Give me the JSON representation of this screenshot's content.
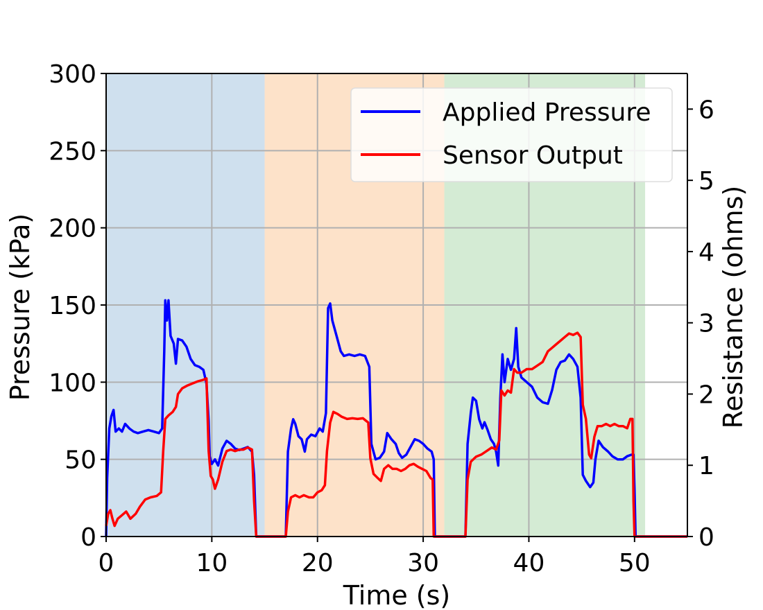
{
  "chart_data": {
    "type": "line",
    "xlabel": "Time (s)",
    "ylabel": "Pressure (kPa)",
    "y2label": "Resistance (ohms)",
    "xlim": [
      0,
      55
    ],
    "ylim": [
      0,
      300
    ],
    "y2lim": [
      0,
      6.5
    ],
    "xticks": [
      0,
      10,
      20,
      30,
      40,
      50
    ],
    "yticks": [
      0,
      50,
      100,
      150,
      200,
      250,
      300
    ],
    "y2ticks": [
      0,
      1,
      2,
      3,
      4,
      5,
      6
    ],
    "grid": true,
    "legend_position": "top-right",
    "shaded_regions": [
      {
        "x0": 0,
        "x1": 15,
        "color": "#cfe0ee"
      },
      {
        "x0": 15,
        "x1": 32,
        "color": "#fde2c9"
      },
      {
        "x0": 32,
        "x1": 51,
        "color": "#d4ebd4"
      }
    ],
    "series": [
      {
        "name": "Applied Pressure",
        "color": "#0000ff",
        "axis": "left",
        "points": [
          [
            0,
            0
          ],
          [
            0.1,
            38
          ],
          [
            0.3,
            70
          ],
          [
            0.5,
            78
          ],
          [
            0.7,
            82
          ],
          [
            0.9,
            68
          ],
          [
            1.2,
            70
          ],
          [
            1.5,
            68
          ],
          [
            1.8,
            73
          ],
          [
            2.2,
            70
          ],
          [
            2.6,
            68
          ],
          [
            3.0,
            67
          ],
          [
            3.5,
            68
          ],
          [
            4.0,
            69
          ],
          [
            4.5,
            68
          ],
          [
            5.0,
            67
          ],
          [
            5.3,
            70
          ],
          [
            5.5,
            120
          ],
          [
            5.6,
            153
          ],
          [
            5.75,
            140
          ],
          [
            5.9,
            153
          ],
          [
            6.1,
            130
          ],
          [
            6.4,
            125
          ],
          [
            6.6,
            112
          ],
          [
            6.8,
            128
          ],
          [
            7.2,
            127
          ],
          [
            7.6,
            123
          ],
          [
            8.0,
            115
          ],
          [
            8.4,
            111
          ],
          [
            8.8,
            110
          ],
          [
            9.2,
            108
          ],
          [
            9.5,
            99
          ],
          [
            9.7,
            75
          ],
          [
            9.8,
            52
          ],
          [
            10.0,
            47
          ],
          [
            10.3,
            50
          ],
          [
            10.6,
            46
          ],
          [
            11.0,
            57
          ],
          [
            11.4,
            62
          ],
          [
            11.8,
            60
          ],
          [
            12.2,
            57
          ],
          [
            12.6,
            56
          ],
          [
            13.0,
            57
          ],
          [
            13.4,
            58
          ],
          [
            13.8,
            55
          ],
          [
            14.0,
            40
          ],
          [
            14.2,
            0
          ],
          [
            17.0,
            0
          ],
          [
            17.2,
            55
          ],
          [
            17.5,
            70
          ],
          [
            17.7,
            76
          ],
          [
            17.9,
            73
          ],
          [
            18.2,
            65
          ],
          [
            18.5,
            63
          ],
          [
            18.8,
            55
          ],
          [
            19.0,
            63
          ],
          [
            19.4,
            66
          ],
          [
            19.8,
            65
          ],
          [
            20.2,
            70
          ],
          [
            20.5,
            68
          ],
          [
            20.8,
            80
          ],
          [
            21.0,
            148
          ],
          [
            21.2,
            151
          ],
          [
            21.4,
            140
          ],
          [
            21.8,
            130
          ],
          [
            22.2,
            120
          ],
          [
            22.5,
            117
          ],
          [
            23.0,
            118
          ],
          [
            23.5,
            117
          ],
          [
            24.0,
            118
          ],
          [
            24.5,
            117
          ],
          [
            24.9,
            110
          ],
          [
            25.1,
            60
          ],
          [
            25.5,
            50
          ],
          [
            25.9,
            51
          ],
          [
            26.3,
            55
          ],
          [
            26.6,
            67
          ],
          [
            27.0,
            63
          ],
          [
            27.4,
            60
          ],
          [
            27.7,
            54
          ],
          [
            28.0,
            51
          ],
          [
            28.4,
            53
          ],
          [
            28.8,
            58
          ],
          [
            29.2,
            63
          ],
          [
            29.6,
            62
          ],
          [
            30.0,
            60
          ],
          [
            30.4,
            57
          ],
          [
            30.8,
            55
          ],
          [
            31.0,
            50
          ],
          [
            31.1,
            0
          ],
          [
            34.0,
            0
          ],
          [
            34.2,
            60
          ],
          [
            34.5,
            80
          ],
          [
            34.7,
            90
          ],
          [
            35.0,
            88
          ],
          [
            35.3,
            76
          ],
          [
            35.6,
            70
          ],
          [
            35.8,
            74
          ],
          [
            36.1,
            69
          ],
          [
            36.4,
            63
          ],
          [
            36.7,
            60
          ],
          [
            36.9,
            55
          ],
          [
            37.1,
            46
          ],
          [
            37.3,
            90
          ],
          [
            37.5,
            118
          ],
          [
            37.7,
            100
          ],
          [
            38.0,
            115
          ],
          [
            38.3,
            108
          ],
          [
            38.6,
            115
          ],
          [
            38.8,
            135
          ],
          [
            39.0,
            110
          ],
          [
            39.3,
            103
          ],
          [
            39.8,
            100
          ],
          [
            40.3,
            97
          ],
          [
            40.8,
            90
          ],
          [
            41.3,
            87
          ],
          [
            41.8,
            86
          ],
          [
            42.2,
            95
          ],
          [
            42.6,
            108
          ],
          [
            43.0,
            113
          ],
          [
            43.4,
            114
          ],
          [
            43.8,
            118
          ],
          [
            44.2,
            115
          ],
          [
            44.6,
            110
          ],
          [
            44.9,
            90
          ],
          [
            45.1,
            40
          ],
          [
            45.4,
            36
          ],
          [
            45.8,
            32
          ],
          [
            46.1,
            35
          ],
          [
            46.3,
            50
          ],
          [
            46.6,
            62
          ],
          [
            47.0,
            58
          ],
          [
            47.5,
            55
          ],
          [
            47.9,
            52
          ],
          [
            48.4,
            50
          ],
          [
            48.9,
            50
          ],
          [
            49.3,
            52
          ],
          [
            49.7,
            53
          ],
          [
            49.9,
            53
          ],
          [
            50.0,
            30
          ],
          [
            50.1,
            0
          ],
          [
            55,
            0
          ]
        ]
      },
      {
        "name": "Sensor Output",
        "color": "#ff0000",
        "axis": "right",
        "points": [
          [
            0,
            0.15
          ],
          [
            0.2,
            0.32
          ],
          [
            0.4,
            0.37
          ],
          [
            0.6,
            0.25
          ],
          [
            0.8,
            0.15
          ],
          [
            1.1,
            0.25
          ],
          [
            1.5,
            0.3
          ],
          [
            1.9,
            0.35
          ],
          [
            2.3,
            0.25
          ],
          [
            2.8,
            0.32
          ],
          [
            3.2,
            0.42
          ],
          [
            3.7,
            0.52
          ],
          [
            4.2,
            0.55
          ],
          [
            4.8,
            0.57
          ],
          [
            5.2,
            0.62
          ],
          [
            5.4,
            1.2
          ],
          [
            5.6,
            1.65
          ],
          [
            5.9,
            1.7
          ],
          [
            6.3,
            1.75
          ],
          [
            6.6,
            1.82
          ],
          [
            6.8,
            2.0
          ],
          [
            7.2,
            2.08
          ],
          [
            7.7,
            2.12
          ],
          [
            8.2,
            2.15
          ],
          [
            8.7,
            2.18
          ],
          [
            9.2,
            2.2
          ],
          [
            9.5,
            2.22
          ],
          [
            9.7,
            1.2
          ],
          [
            9.9,
            0.85
          ],
          [
            10.1,
            0.8
          ],
          [
            10.3,
            0.67
          ],
          [
            10.6,
            0.8
          ],
          [
            11.0,
            1.05
          ],
          [
            11.4,
            1.2
          ],
          [
            11.8,
            1.22
          ],
          [
            12.2,
            1.2
          ],
          [
            12.6,
            1.22
          ],
          [
            13.0,
            1.22
          ],
          [
            13.4,
            1.25
          ],
          [
            13.8,
            1.22
          ],
          [
            14.0,
            0.5
          ],
          [
            14.2,
            0
          ],
          [
            17.0,
            0
          ],
          [
            17.2,
            0.35
          ],
          [
            17.5,
            0.55
          ],
          [
            17.9,
            0.58
          ],
          [
            18.3,
            0.55
          ],
          [
            18.7,
            0.58
          ],
          [
            19.2,
            0.55
          ],
          [
            19.6,
            0.55
          ],
          [
            20.0,
            0.62
          ],
          [
            20.4,
            0.65
          ],
          [
            20.7,
            0.72
          ],
          [
            20.9,
            1.2
          ],
          [
            21.2,
            1.6
          ],
          [
            21.5,
            1.75
          ],
          [
            21.9,
            1.72
          ],
          [
            22.3,
            1.68
          ],
          [
            22.8,
            1.65
          ],
          [
            23.3,
            1.66
          ],
          [
            23.8,
            1.65
          ],
          [
            24.3,
            1.66
          ],
          [
            24.8,
            1.6
          ],
          [
            25.0,
            1.1
          ],
          [
            25.3,
            0.88
          ],
          [
            25.7,
            0.82
          ],
          [
            26.0,
            0.78
          ],
          [
            26.3,
            0.95
          ],
          [
            26.7,
            1.0
          ],
          [
            27.1,
            0.95
          ],
          [
            27.5,
            0.95
          ],
          [
            27.9,
            0.92
          ],
          [
            28.3,
            0.95
          ],
          [
            28.7,
            1.0
          ],
          [
            29.1,
            1.02
          ],
          [
            29.5,
            0.98
          ],
          [
            29.9,
            0.95
          ],
          [
            30.3,
            0.92
          ],
          [
            30.7,
            0.82
          ],
          [
            30.9,
            0.8
          ],
          [
            31.0,
            0
          ],
          [
            34.0,
            0
          ],
          [
            34.2,
            0.8
          ],
          [
            34.5,
            1.05
          ],
          [
            35.0,
            1.12
          ],
          [
            35.5,
            1.15
          ],
          [
            36.0,
            1.2
          ],
          [
            36.5,
            1.25
          ],
          [
            36.9,
            1.22
          ],
          [
            37.2,
            1.35
          ],
          [
            37.4,
            2.05
          ],
          [
            37.7,
            1.98
          ],
          [
            38.0,
            2.05
          ],
          [
            38.3,
            2.02
          ],
          [
            38.6,
            2.35
          ],
          [
            38.9,
            2.3
          ],
          [
            39.3,
            2.3
          ],
          [
            39.8,
            2.35
          ],
          [
            40.3,
            2.35
          ],
          [
            40.8,
            2.4
          ],
          [
            41.3,
            2.45
          ],
          [
            41.8,
            2.6
          ],
          [
            42.2,
            2.65
          ],
          [
            42.6,
            2.7
          ],
          [
            43.0,
            2.75
          ],
          [
            43.4,
            2.8
          ],
          [
            43.8,
            2.85
          ],
          [
            44.2,
            2.83
          ],
          [
            44.6,
            2.86
          ],
          [
            44.9,
            2.8
          ],
          [
            45.1,
            1.85
          ],
          [
            45.4,
            1.65
          ],
          [
            45.7,
            1.15
          ],
          [
            45.9,
            1.1
          ],
          [
            46.2,
            1.4
          ],
          [
            46.5,
            1.55
          ],
          [
            46.9,
            1.55
          ],
          [
            47.3,
            1.58
          ],
          [
            47.7,
            1.55
          ],
          [
            48.1,
            1.58
          ],
          [
            48.5,
            1.55
          ],
          [
            48.9,
            1.55
          ],
          [
            49.3,
            1.52
          ],
          [
            49.6,
            1.65
          ],
          [
            49.8,
            1.65
          ],
          [
            49.9,
            0.5
          ],
          [
            50.0,
            0
          ],
          [
            55,
            0
          ]
        ]
      }
    ]
  }
}
